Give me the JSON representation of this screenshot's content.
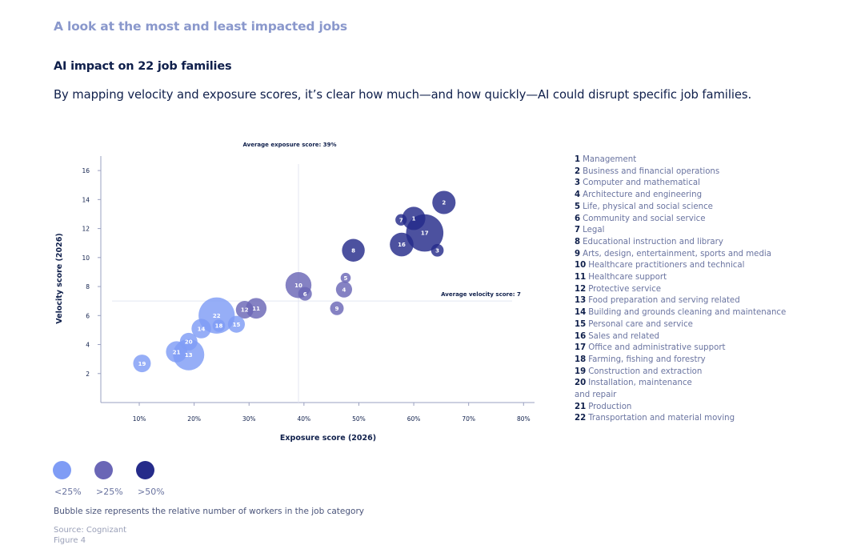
{
  "header": {
    "kicker": "A look at the most and least impacted jobs",
    "subtitle": "AI impact on 22 job families",
    "description": "By mapping velocity and exposure scores, it’s clear how much—and how quickly—AI could disrupt specific job families."
  },
  "chart_data": {
    "type": "scatter",
    "subtype": "bubble",
    "xlabel": "Exposure score (2026)",
    "ylabel": "Velocity score (2026)",
    "xlim": [
      3,
      82
    ],
    "ylim": [
      0,
      17
    ],
    "x_ticks": [
      10,
      20,
      30,
      40,
      50,
      60,
      70,
      80
    ],
    "x_tick_labels": [
      "10%",
      "20%",
      "30%",
      "40%",
      "50%",
      "60%",
      "70%",
      "80%"
    ],
    "y_ticks": [
      2,
      4,
      6,
      8,
      10,
      12,
      14,
      16
    ],
    "y_tick_labels": [
      "2",
      "4",
      "6",
      "8",
      "10",
      "12",
      "14",
      "16"
    ],
    "grid": false,
    "reference_lines": {
      "avg_exposure": {
        "value": 39,
        "label": "Average exposure score: 39%"
      },
      "avg_velocity": {
        "value": 7,
        "label": "Average velocity score: 7"
      }
    },
    "categories": {
      "low": {
        "label": "<25%",
        "color": "#7f9cf5"
      },
      "mid": {
        "label": ">25%",
        "color": "#6a66b6"
      },
      "high": {
        "label": ">50%",
        "color": "#252b8a"
      }
    },
    "points": [
      {
        "id": 1,
        "x": 60.0,
        "y": 12.7,
        "size": 2.0,
        "cat": "high"
      },
      {
        "id": 2,
        "x": 65.5,
        "y": 13.8,
        "size": 2.0,
        "cat": "high"
      },
      {
        "id": 3,
        "x": 64.3,
        "y": 10.5,
        "size": 0.4,
        "cat": "high"
      },
      {
        "id": 4,
        "x": 47.3,
        "y": 7.8,
        "size": 0.8,
        "cat": "mid"
      },
      {
        "id": 5,
        "x": 47.6,
        "y": 8.6,
        "size": 0.2,
        "cat": "mid"
      },
      {
        "id": 6,
        "x": 40.2,
        "y": 7.5,
        "size": 0.5,
        "cat": "mid"
      },
      {
        "id": 7,
        "x": 57.7,
        "y": 12.6,
        "size": 0.3,
        "cat": "high"
      },
      {
        "id": 8,
        "x": 49.0,
        "y": 10.5,
        "size": 1.9,
        "cat": "high"
      },
      {
        "id": 9,
        "x": 46.0,
        "y": 6.5,
        "size": 0.5,
        "cat": "mid"
      },
      {
        "id": 10,
        "x": 39.0,
        "y": 8.1,
        "size": 2.6,
        "cat": "mid"
      },
      {
        "id": 11,
        "x": 31.3,
        "y": 6.5,
        "size": 1.5,
        "cat": "mid"
      },
      {
        "id": 12,
        "x": 29.2,
        "y": 6.4,
        "size": 1.0,
        "cat": "mid"
      },
      {
        "id": 13,
        "x": 19.0,
        "y": 3.3,
        "size": 4.0,
        "cat": "low"
      },
      {
        "id": 14,
        "x": 21.3,
        "y": 5.1,
        "size": 1.3,
        "cat": "low"
      },
      {
        "id": 15,
        "x": 27.7,
        "y": 5.4,
        "size": 0.9,
        "cat": "low"
      },
      {
        "id": 16,
        "x": 57.8,
        "y": 10.9,
        "size": 2.1,
        "cat": "high"
      },
      {
        "id": 17,
        "x": 62.0,
        "y": 11.7,
        "size": 6.0,
        "cat": "high"
      },
      {
        "id": 18,
        "x": 24.5,
        "y": 5.3,
        "size": 0.4,
        "cat": "low"
      },
      {
        "id": 19,
        "x": 10.5,
        "y": 2.7,
        "size": 1.0,
        "cat": "low"
      },
      {
        "id": 20,
        "x": 19.0,
        "y": 4.2,
        "size": 1.0,
        "cat": "low"
      },
      {
        "id": 21,
        "x": 16.8,
        "y": 3.5,
        "size": 1.6,
        "cat": "low"
      },
      {
        "id": 22,
        "x": 24.1,
        "y": 6.0,
        "size": 5.6,
        "cat": "low"
      }
    ]
  },
  "job_families": [
    {
      "num": "1",
      "name": "Management"
    },
    {
      "num": "2",
      "name": "Business and financial operations"
    },
    {
      "num": "3",
      "name": "Computer and mathematical"
    },
    {
      "num": "4",
      "name": "Architecture and engineering"
    },
    {
      "num": "5",
      "name": "Life, physical and social science"
    },
    {
      "num": "6",
      "name": "Community and social service"
    },
    {
      "num": "7",
      "name": "Legal"
    },
    {
      "num": "8",
      "name": "Educational instruction and library"
    },
    {
      "num": "9",
      "name": "Arts, design, entertainment, sports and media"
    },
    {
      "num": "10",
      "name": "Healthcare practitioners and technical"
    },
    {
      "num": "11",
      "name": "Healthcare support"
    },
    {
      "num": "12",
      "name": "Protective service"
    },
    {
      "num": "13",
      "name": "Food preparation and serving related"
    },
    {
      "num": "14",
      "name": "Building and grounds cleaning and maintenance"
    },
    {
      "num": "15",
      "name": "Personal care and service"
    },
    {
      "num": "16",
      "name": "Sales and related"
    },
    {
      "num": "17",
      "name": "Office and administrative support"
    },
    {
      "num": "18",
      "name": "Farming, fishing and forestry"
    },
    {
      "num": "19",
      "name": "Construction and extraction"
    },
    {
      "num": "20",
      "name": "Installation, maintenance and repair"
    },
    {
      "num": "21",
      "name": "Production"
    },
    {
      "num": "22",
      "name": "Transportation and material moving"
    }
  ],
  "key": {
    "low_label": "<25%",
    "mid_label": ">25%",
    "high_label": ">50%"
  },
  "footer": {
    "note": "Bubble size represents the relative number of workers in the job category",
    "source": "Source: Cognizant",
    "figure": "Figure 4"
  }
}
